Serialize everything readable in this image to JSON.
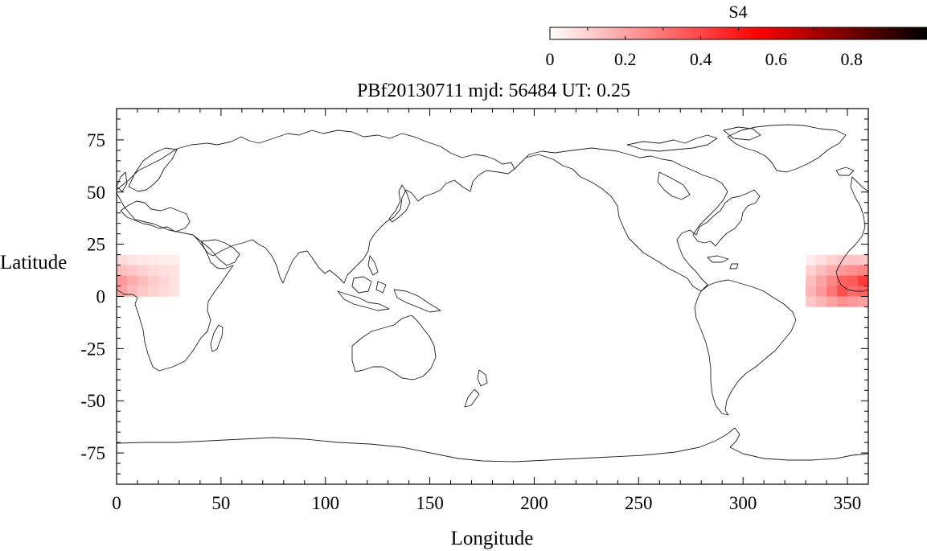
{
  "chart_data": {
    "type": "heatmap",
    "title": "PBf20130711  mjd: 56484  UT:   0.25",
    "xlabel": "Longitude",
    "ylabel": "Latitude",
    "xlim": [
      0,
      360
    ],
    "ylim": [
      -90,
      90
    ],
    "x_ticks": [
      0,
      50,
      100,
      150,
      200,
      250,
      300,
      350
    ],
    "y_ticks": [
      -75,
      -50,
      -25,
      0,
      25,
      50,
      75
    ],
    "grid": false,
    "background_map": "world coastlines",
    "colorbar": {
      "label": "S4",
      "range": [
        0,
        1
      ],
      "ticks": [
        0,
        0.2,
        0.4,
        0.6,
        0.8
      ],
      "tick_labels": [
        "0",
        "0.2",
        "0.4",
        "0.6",
        "0.8"
      ],
      "colors": [
        "#ffffff",
        "#ff0000",
        "#000000"
      ],
      "placement": "top-right"
    },
    "cell_size_deg": [
      5,
      5
    ],
    "cells": [
      {
        "lon": 0,
        "lat": 15,
        "value": 0.08
      },
      {
        "lon": 0,
        "lat": 10,
        "value": 0.14
      },
      {
        "lon": 0,
        "lat": 5,
        "value": 0.22
      },
      {
        "lon": 0,
        "lat": 0,
        "value": 0.2
      },
      {
        "lon": 5,
        "lat": 15,
        "value": 0.06
      },
      {
        "lon": 5,
        "lat": 10,
        "value": 0.12
      },
      {
        "lon": 5,
        "lat": 5,
        "value": 0.18
      },
      {
        "lon": 5,
        "lat": 0,
        "value": 0.15
      },
      {
        "lon": 10,
        "lat": 15,
        "value": 0.05
      },
      {
        "lon": 10,
        "lat": 10,
        "value": 0.1
      },
      {
        "lon": 10,
        "lat": 5,
        "value": 0.14
      },
      {
        "lon": 10,
        "lat": 0,
        "value": 0.12
      },
      {
        "lon": 15,
        "lat": 15,
        "value": 0.05
      },
      {
        "lon": 15,
        "lat": 10,
        "value": 0.08
      },
      {
        "lon": 15,
        "lat": 5,
        "value": 0.11
      },
      {
        "lon": 15,
        "lat": 0,
        "value": 0.1
      },
      {
        "lon": 20,
        "lat": 15,
        "value": 0.04
      },
      {
        "lon": 20,
        "lat": 10,
        "value": 0.07
      },
      {
        "lon": 20,
        "lat": 5,
        "value": 0.09
      },
      {
        "lon": 20,
        "lat": 0,
        "value": 0.08
      },
      {
        "lon": 25,
        "lat": 15,
        "value": 0.04
      },
      {
        "lon": 25,
        "lat": 10,
        "value": 0.06
      },
      {
        "lon": 25,
        "lat": 5,
        "value": 0.07
      },
      {
        "lon": 25,
        "lat": 0,
        "value": 0.06
      },
      {
        "lon": 330,
        "lat": 15,
        "value": 0.04
      },
      {
        "lon": 330,
        "lat": 10,
        "value": 0.1
      },
      {
        "lon": 330,
        "lat": 5,
        "value": 0.14
      },
      {
        "lon": 330,
        "lat": 0,
        "value": 0.16
      },
      {
        "lon": 330,
        "lat": -5,
        "value": 0.12
      },
      {
        "lon": 335,
        "lat": 15,
        "value": 0.07
      },
      {
        "lon": 335,
        "lat": 10,
        "value": 0.14
      },
      {
        "lon": 335,
        "lat": 5,
        "value": 0.2
      },
      {
        "lon": 335,
        "lat": 0,
        "value": 0.22
      },
      {
        "lon": 335,
        "lat": -5,
        "value": 0.16
      },
      {
        "lon": 340,
        "lat": 15,
        "value": 0.1
      },
      {
        "lon": 340,
        "lat": 10,
        "value": 0.18
      },
      {
        "lon": 340,
        "lat": 5,
        "value": 0.26
      },
      {
        "lon": 340,
        "lat": 0,
        "value": 0.3
      },
      {
        "lon": 340,
        "lat": -5,
        "value": 0.2
      },
      {
        "lon": 345,
        "lat": 15,
        "value": 0.12
      },
      {
        "lon": 345,
        "lat": 10,
        "value": 0.22
      },
      {
        "lon": 345,
        "lat": 5,
        "value": 0.34
      },
      {
        "lon": 345,
        "lat": 0,
        "value": 0.38
      },
      {
        "lon": 345,
        "lat": -5,
        "value": 0.24
      },
      {
        "lon": 350,
        "lat": 15,
        "value": 0.13
      },
      {
        "lon": 350,
        "lat": 10,
        "value": 0.24
      },
      {
        "lon": 350,
        "lat": 5,
        "value": 0.36
      },
      {
        "lon": 350,
        "lat": 0,
        "value": 0.32
      },
      {
        "lon": 350,
        "lat": -5,
        "value": 0.22
      },
      {
        "lon": 355,
        "lat": 15,
        "value": 0.12
      },
      {
        "lon": 355,
        "lat": 10,
        "value": 0.26
      },
      {
        "lon": 355,
        "lat": 5,
        "value": 0.42
      },
      {
        "lon": 355,
        "lat": 0,
        "value": 0.34
      },
      {
        "lon": 355,
        "lat": -5,
        "value": 0.2
      }
    ]
  }
}
